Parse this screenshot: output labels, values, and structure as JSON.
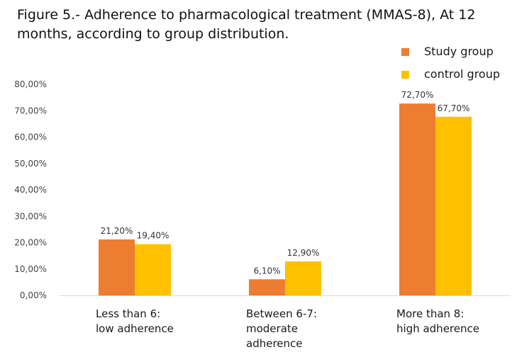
{
  "title": "Figure 5.- Adherence to pharmacological treatment (MMAS-8), At 12 months, according to group distribution.",
  "chart_data": {
    "type": "bar",
    "title": "Figure 5.- Adherence to pharmacological treatment (MMAS-8), At 12 months, according to group distribution.",
    "categories": [
      [
        "Less than 6:",
        "low adherence"
      ],
      [
        "Between 6-7:",
        "moderate",
        "adherence"
      ],
      [
        "More than 8:",
        "high adherence"
      ]
    ],
    "series": [
      {
        "name": "Study group",
        "color": "#ED7D31",
        "values": [
          21.2,
          6.1,
          72.7
        ],
        "labels": [
          "21,20%",
          "6,10%",
          "72,70%"
        ]
      },
      {
        "name": "control group",
        "color": "#FFC000",
        "values": [
          19.4,
          12.9,
          67.7
        ],
        "labels": [
          "19,40%",
          "12,90%",
          "67,70%"
        ]
      }
    ],
    "yticks": [
      0,
      10,
      20,
      30,
      40,
      50,
      60,
      70,
      80
    ],
    "ytick_labels": [
      "0,00%",
      "10,00%",
      "20,00%",
      "30,00%",
      "40,00%",
      "50,00%",
      "60,00%",
      "70,00%",
      "80,00%"
    ],
    "ylim": [
      0,
      80
    ],
    "xlabel": "",
    "ylabel": "",
    "grid": false,
    "legend": "top-right"
  }
}
